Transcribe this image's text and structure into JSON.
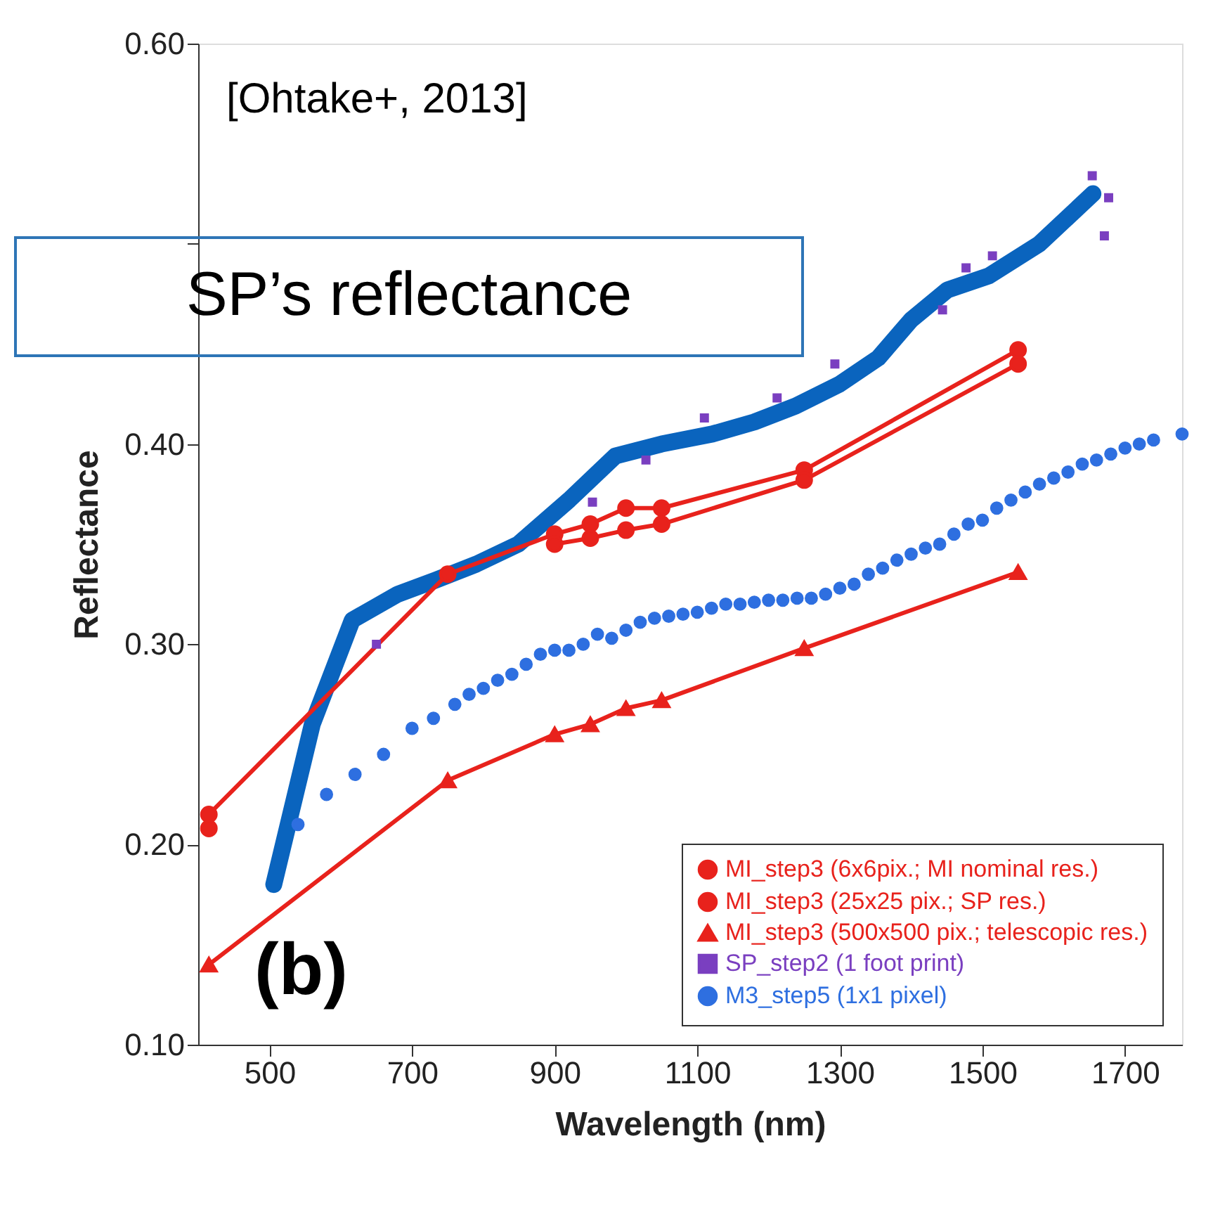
{
  "chart_data": {
    "type": "line",
    "xlabel": "Wavelength (nm)",
    "ylabel": "Reflectance",
    "xlim": [
      400,
      1780
    ],
    "xticks": [
      500,
      700,
      900,
      1100,
      1300,
      1500,
      1700
    ],
    "line_style": "solid",
    "ylim": [
      0.1,
      0.6
    ],
    "yticks": [
      {
        "value": 0.1,
        "label": "0.10"
      },
      {
        "value": 0.2,
        "label": "0.20"
      },
      {
        "value": 0.3,
        "label": "0.30"
      },
      {
        "value": 0.4,
        "label": "0.40"
      },
      {
        "value": 0.5,
        "label": null
      },
      {
        "value": 0.6,
        "label": "0.60"
      }
    ],
    "grid": false,
    "legend": "bottom right",
    "annotations": [
      "[Ohtake+, 2013]",
      "(b)",
      "SP’s reflectance"
    ],
    "series": [
      {
        "name": "MI_step3 (6x6pix.; MI nominal res.)",
        "marker": "circle",
        "color": "#e8221c",
        "x": [
          415,
          750,
          900,
          950,
          1000,
          1050,
          1250,
          1550
        ],
        "values": [
          0.215,
          0.335,
          0.355,
          0.36,
          0.368,
          0.368,
          0.387,
          0.447
        ]
      },
      {
        "name": "MI_step3 (25x25 pix.; SP res.)",
        "marker": "circle",
        "color": "#e8221c",
        "x": [
          415,
          750,
          900,
          950,
          1000,
          1050,
          1250,
          1550
        ],
        "values": [
          0.208,
          null,
          0.35,
          0.353,
          0.357,
          0.36,
          0.382,
          0.44
        ]
      },
      {
        "name": "MI_step3 (500x500 pix.; telescopic res.)",
        "marker": "triangle",
        "color": "#e8221c",
        "x": [
          415,
          750,
          900,
          950,
          1000,
          1050,
          1250,
          1550
        ],
        "values": [
          0.14,
          0.232,
          0.255,
          0.26,
          0.268,
          0.272,
          0.298,
          0.336
        ]
      },
      {
        "name": "SP_step2 (1 foot print)",
        "type": "scatter",
        "marker": "square",
        "color": "#7a3fc0",
        "x": [
          650,
          953,
          1028,
          1110,
          1212,
          1293,
          1444,
          1477,
          1514,
          1654,
          1671,
          1677
        ],
        "values": [
          0.3,
          0.371,
          0.392,
          0.413,
          0.423,
          0.44,
          0.467,
          0.488,
          0.494,
          0.534,
          0.504,
          0.523
        ]
      },
      {
        "name": "M3_step5 (1x1 pixel)",
        "type": "scatter",
        "marker": "circle",
        "color": "#2e6fe0",
        "x": [
          540,
          580,
          620,
          660,
          700,
          730,
          760,
          780,
          800,
          820,
          840,
          860,
          880,
          900,
          920,
          940,
          960,
          980,
          1000,
          1020,
          1040,
          1060,
          1080,
          1100,
          1120,
          1140,
          1160,
          1180,
          1200,
          1220,
          1240,
          1260,
          1280,
          1300,
          1320,
          1340,
          1360,
          1380,
          1400,
          1420,
          1440,
          1460,
          1480,
          1500,
          1520,
          1540,
          1560,
          1580,
          1600,
          1620,
          1640,
          1660,
          1680,
          1700,
          1720,
          1740,
          1780
        ],
        "values": [
          0.21,
          0.225,
          0.235,
          0.245,
          0.258,
          0.263,
          0.27,
          0.275,
          0.278,
          0.282,
          0.285,
          0.29,
          0.295,
          0.297,
          0.297,
          0.3,
          0.305,
          0.303,
          0.307,
          0.311,
          0.313,
          0.314,
          0.315,
          0.316,
          0.318,
          0.32,
          0.32,
          0.321,
          0.322,
          0.322,
          0.323,
          0.323,
          0.325,
          0.328,
          0.33,
          0.335,
          0.338,
          0.342,
          0.345,
          0.348,
          0.35,
          0.355,
          0.36,
          0.362,
          0.368,
          0.372,
          0.376,
          0.38,
          0.383,
          0.386,
          0.39,
          0.392,
          0.395,
          0.398,
          0.4,
          0.402,
          0.405
        ]
      },
      {
        "marker": "none",
        "color": "#0a64be",
        "x": [
          506,
          560,
          616,
          680,
          733,
          790,
          849,
          920,
          985,
          1050,
          1121,
          1180,
          1238,
          1300,
          1354,
          1400,
          1451,
          1509,
          1580,
          1655
        ],
        "values": [
          0.18,
          0.26,
          0.312,
          0.325,
          0.332,
          0.34,
          0.35,
          0.372,
          0.394,
          0.4,
          0.405,
          0.411,
          0.419,
          0.43,
          0.443,
          0.462,
          0.477,
          0.484,
          0.5,
          0.525
        ]
      }
    ]
  }
}
